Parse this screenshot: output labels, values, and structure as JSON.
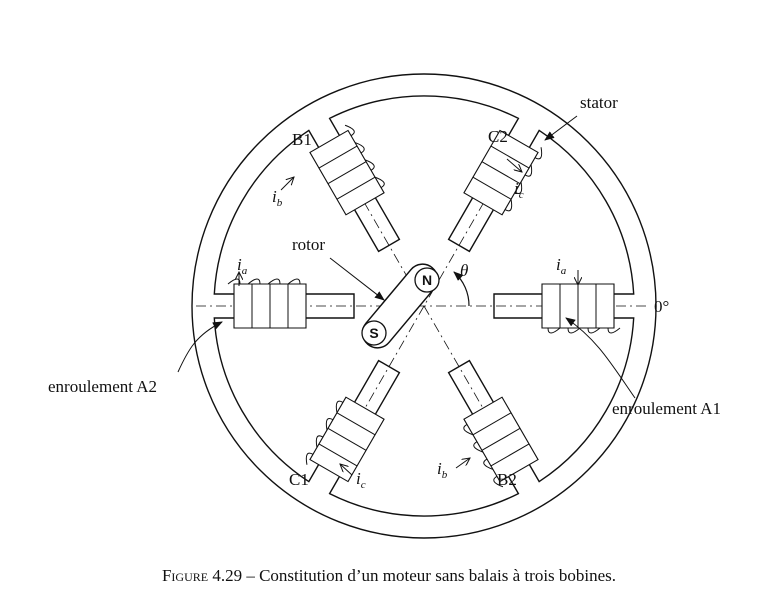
{
  "labels": {
    "stator": "stator",
    "rotor": "rotor",
    "theta": "θ",
    "zero_deg": "0°",
    "enroulement_a1": "enroulement A1",
    "enroulement_a2": "enroulement A2",
    "b1": "B1",
    "b2": "B2",
    "c1": "C1",
    "c2": "C2",
    "pole_n": "N",
    "pole_s": "S"
  },
  "currents": {
    "base": "i",
    "a": "a",
    "b": "b",
    "c": "c"
  },
  "caption": {
    "prefix": "Figure 4.29",
    "text": " – Constitution d’un moteur sans balais à trois bobines."
  },
  "colors": {
    "stroke": "#111111",
    "background": "#ffffff"
  }
}
